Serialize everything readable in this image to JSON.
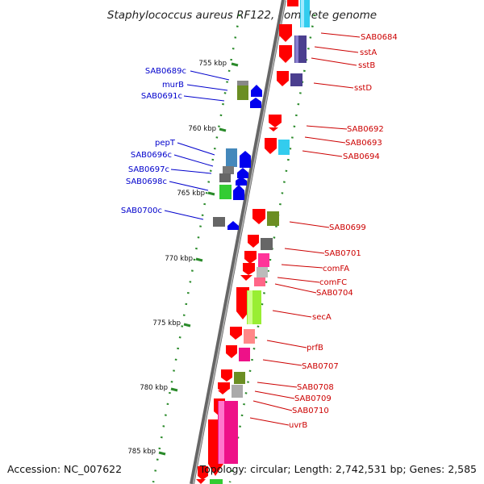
{
  "title": "Staphylococcus aureus RF122, complete genome",
  "accession": "Accession: NC_007622",
  "topology": "Topology: circular; Length: 2,742,531 bp; Genes: 2,585",
  "colors": {
    "forward": "#ff0000",
    "reverse": "#0000ff",
    "label_forward": "#cc0000",
    "label_reverse": "#0000cc",
    "backbone": "#777777",
    "tick": "#2a8a2a"
  },
  "scale": {
    "ticks": [
      "755 kbp",
      "760 kbp",
      "765 kbp",
      "770 kbp",
      "775 kbp",
      "780 kbp",
      "785 kbp"
    ]
  },
  "forward_genes": [
    "SAB0684",
    "sstA",
    "sstB",
    "sstD",
    "SAB0692",
    "SAB0693",
    "SAB0694",
    "SAB0699",
    "SAB0701",
    "comFA",
    "comFC",
    "SAB0704",
    "secA",
    "prfB",
    "SAB0707",
    "SAB0708",
    "SAB0709",
    "SAB0710",
    "uvrB"
  ],
  "reverse_genes": [
    "SAB0689c",
    "murB",
    "SAB0691c",
    "pepT",
    "SAB0696c",
    "SAB0697c",
    "SAB0698c",
    "SAB0700c"
  ]
}
